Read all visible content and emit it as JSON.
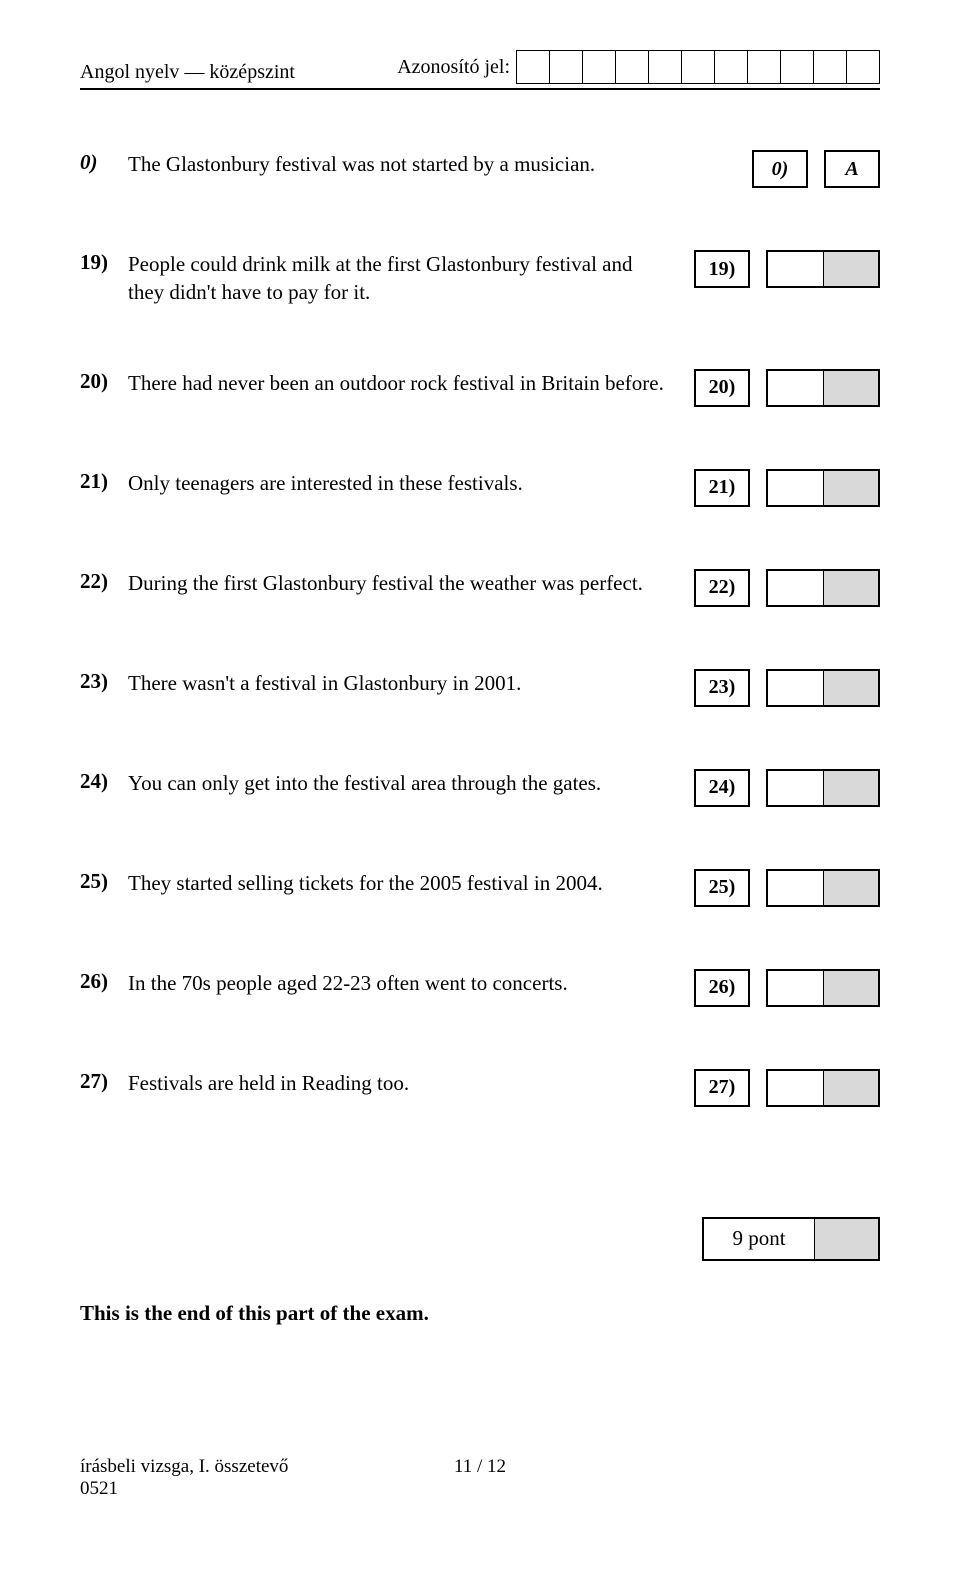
{
  "header": {
    "subject": "Angol nyelv — középszint",
    "id_label": "Azonosító jel:",
    "id_box_count": 11
  },
  "questions": [
    {
      "num": "0)",
      "num_italic": true,
      "text": "The Glastonbury festival was not started by a musician.",
      "ans_num": "0)",
      "ans_num_italic": true,
      "ans_type": "single",
      "ans_value": "A"
    },
    {
      "num": "19)",
      "text": "People could drink milk at the first Glastonbury festival and they didn't have to pay for it.",
      "ans_num": "19)",
      "ans_type": "pair"
    },
    {
      "num": "20)",
      "text": "There had never been an outdoor rock festival in Britain before.",
      "ans_num": "20)",
      "ans_type": "pair"
    },
    {
      "num": "21)",
      "text": "Only teenagers are interested in these festivals.",
      "ans_num": "21)",
      "ans_type": "pair"
    },
    {
      "num": "22)",
      "text": "During the first Glastonbury festival the weather was perfect.",
      "ans_num": "22)",
      "ans_type": "pair"
    },
    {
      "num": "23)",
      "text": "There wasn't a festival in Glastonbury in 2001.",
      "ans_num": "23)",
      "ans_type": "pair"
    },
    {
      "num": "24)",
      "text": "You can only get into the festival area through the gates.",
      "ans_num": "24)",
      "ans_type": "pair"
    },
    {
      "num": "25)",
      "text": "They started selling tickets for the 2005 festival in 2004.",
      "ans_num": "25)",
      "ans_type": "pair"
    },
    {
      "num": "26)",
      "text": "In the 70s people aged 22-23 often went to concerts.",
      "ans_num": "26)",
      "ans_type": "pair"
    },
    {
      "num": "27)",
      "text": "Festivals are held in Reading too.",
      "ans_num": "27)",
      "ans_type": "pair"
    }
  ],
  "score_label": "9 pont",
  "end_text": "This is the end of this part of the exam.",
  "footer": {
    "left_line1": "írásbeli vizsga, I. összetevő",
    "left_line2": "0521",
    "center": "11 / 12"
  }
}
